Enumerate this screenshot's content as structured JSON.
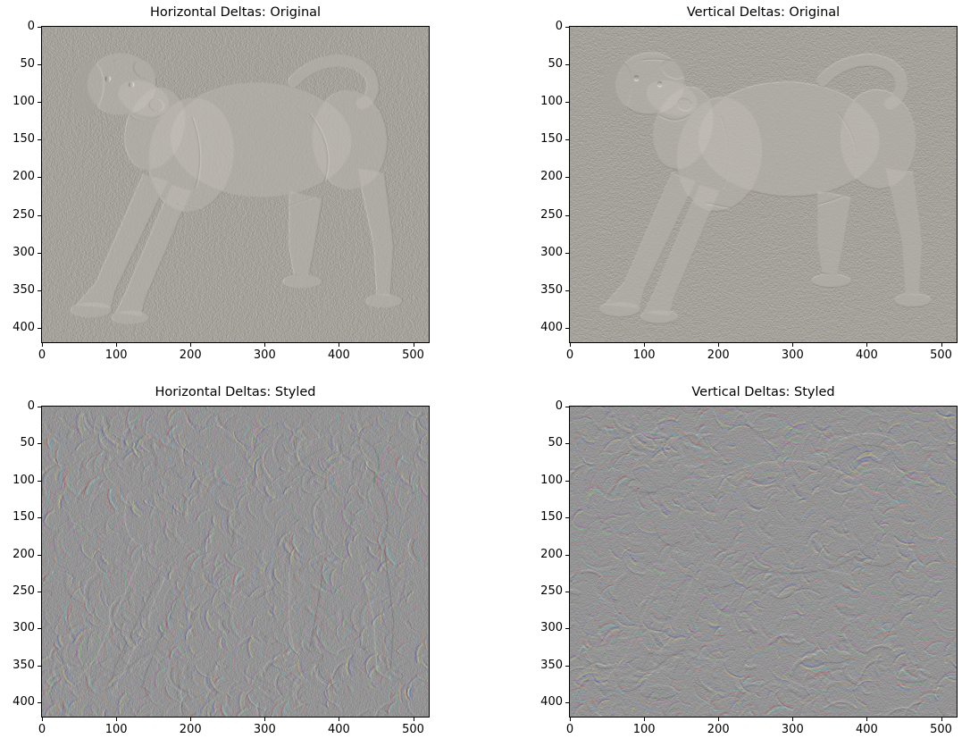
{
  "figure": {
    "background_color": "#ffffff",
    "text_color": "#000000",
    "grid": false
  },
  "chart_data": [
    {
      "type": "heatmap",
      "id": "horizontal-original",
      "title": "Horizontal Deltas: Original",
      "delta_axis": "horizontal",
      "source_style": "original",
      "subject": "embossed gray relief of standing labrador dog, head turned toward viewer, curled tail",
      "base_color": "#a4a29b",
      "xlabel": "",
      "ylabel": "",
      "x_ticks": [
        0,
        100,
        200,
        300,
        400,
        500
      ],
      "y_ticks": [
        0,
        50,
        100,
        150,
        200,
        250,
        300,
        350,
        400
      ],
      "x_range": [
        0,
        521
      ],
      "y_range": [
        0,
        419
      ],
      "legend": null
    },
    {
      "type": "heatmap",
      "id": "vertical-original",
      "title": "Vertical Deltas: Original",
      "delta_axis": "vertical",
      "source_style": "original",
      "subject": "embossed gray relief of standing labrador dog, head turned toward viewer, curled tail",
      "base_color": "#a4a29b",
      "xlabel": "",
      "ylabel": "",
      "x_ticks": [
        0,
        100,
        200,
        300,
        400,
        500
      ],
      "y_ticks": [
        0,
        50,
        100,
        150,
        200,
        250,
        300,
        350,
        400
      ],
      "x_range": [
        0,
        521
      ],
      "y_range": [
        0,
        419
      ],
      "legend": null
    },
    {
      "type": "heatmap",
      "id": "horizontal-styled",
      "title": "Horizontal Deltas: Styled",
      "delta_axis": "horizontal",
      "source_style": "styled",
      "subject": "colorful RGB-fringed swirl noise with faint ghost of same dog",
      "base_color": "#949494",
      "stroke_colors": [
        "#d84040",
        "#4068d8",
        "#40c868",
        "#d8d048",
        "#c848c8",
        "#48c8c8",
        "#d88840",
        "#7848d0"
      ],
      "xlabel": "",
      "ylabel": "",
      "x_ticks": [
        0,
        100,
        200,
        300,
        400,
        500
      ],
      "y_ticks": [
        0,
        50,
        100,
        150,
        200,
        250,
        300,
        350,
        400
      ],
      "x_range": [
        0,
        521
      ],
      "y_range": [
        0,
        419
      ],
      "legend": null
    },
    {
      "type": "heatmap",
      "id": "vertical-styled",
      "title": "Vertical Deltas: Styled",
      "delta_axis": "vertical",
      "source_style": "styled",
      "subject": "colorful RGB-fringed swirl noise with faint ghost of same dog",
      "base_color": "#949494",
      "stroke_colors": [
        "#d84040",
        "#4068d8",
        "#40c868",
        "#d8d048",
        "#c848c8",
        "#48c8c8",
        "#d88840",
        "#7848d0"
      ],
      "xlabel": "",
      "ylabel": "",
      "x_ticks": [
        0,
        100,
        200,
        300,
        400,
        500
      ],
      "y_ticks": [
        0,
        50,
        100,
        150,
        200,
        250,
        300,
        350,
        400
      ],
      "x_range": [
        0,
        521
      ],
      "y_range": [
        0,
        419
      ],
      "legend": null
    }
  ]
}
